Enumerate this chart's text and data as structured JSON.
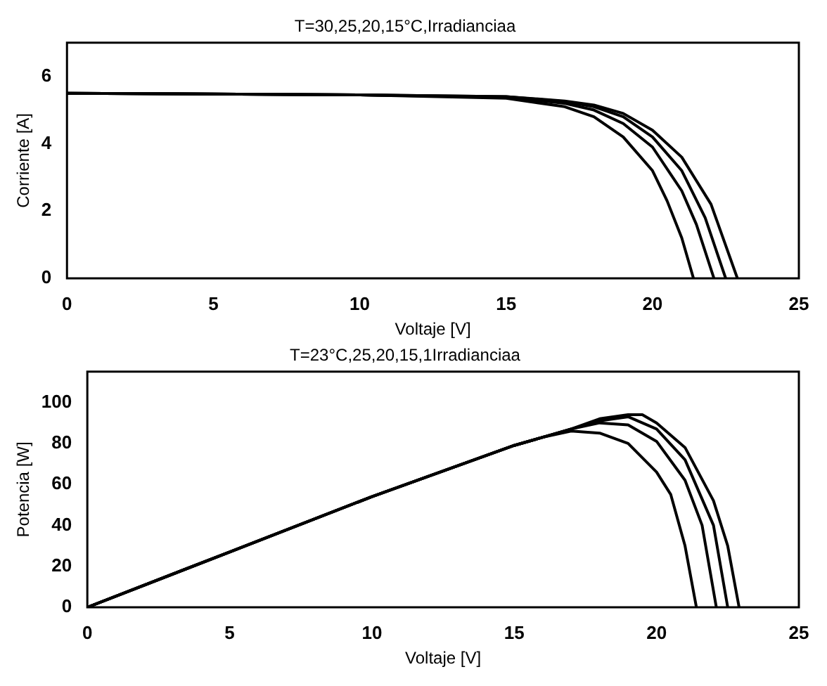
{
  "chart_data": [
    {
      "type": "line",
      "title": "T=30,25,20,15°C,Irradianciaa",
      "xlabel": "Voltaje [V]",
      "ylabel": "Corriente [A]",
      "xlim": [
        0,
        25
      ],
      "xticks": [
        0,
        5,
        10,
        15,
        20,
        25
      ],
      "ylim": [
        0,
        7
      ],
      "yticks": [
        0,
        2,
        4,
        6
      ],
      "grid": false,
      "legend": false,
      "series": [
        {
          "color": "#000000",
          "x": [
            0,
            10,
            15,
            17,
            18,
            19,
            20,
            20.5,
            21,
            21.4
          ],
          "values": [
            5.5,
            5.45,
            5.35,
            5.1,
            4.8,
            4.2,
            3.2,
            2.3,
            1.2,
            0
          ]
        },
        {
          "color": "#000000",
          "x": [
            0,
            10,
            15,
            17,
            18,
            19,
            20,
            21,
            21.5,
            22.1
          ],
          "values": [
            5.5,
            5.45,
            5.38,
            5.2,
            5.0,
            4.6,
            3.9,
            2.6,
            1.6,
            0
          ]
        },
        {
          "color": "#000000",
          "x": [
            0,
            10,
            15,
            17,
            18,
            19,
            20,
            21,
            21.8,
            22.5
          ],
          "values": [
            5.5,
            5.45,
            5.4,
            5.25,
            5.1,
            4.8,
            4.2,
            3.2,
            1.8,
            0
          ]
        },
        {
          "color": "#000000",
          "x": [
            0,
            10,
            15,
            17,
            18,
            19,
            20,
            21,
            22,
            22.9
          ],
          "values": [
            5.5,
            5.45,
            5.4,
            5.27,
            5.15,
            4.9,
            4.4,
            3.6,
            2.2,
            0
          ]
        }
      ]
    },
    {
      "type": "line",
      "title": "T=23°C,25,20,15,1Irradianciaa",
      "xlabel": "Voltaje [V]",
      "ylabel": "Potencia [W]",
      "xlim": [
        0,
        25
      ],
      "xticks": [
        0,
        5,
        10,
        15,
        20,
        25
      ],
      "ylim": [
        0,
        115
      ],
      "yticks": [
        0,
        20,
        40,
        60,
        80,
        100
      ],
      "grid": false,
      "legend": false,
      "series": [
        {
          "color": "#000000",
          "x": [
            0,
            5,
            10,
            15,
            16,
            17,
            18,
            19,
            20,
            20.5,
            21,
            21.4
          ],
          "values": [
            0,
            27,
            54,
            79,
            83,
            86,
            85,
            80,
            66,
            55,
            30,
            0
          ]
        },
        {
          "color": "#000000",
          "x": [
            0,
            5,
            10,
            15,
            16,
            17,
            18,
            19,
            20,
            21,
            21.6,
            22.1
          ],
          "values": [
            0,
            27,
            54,
            79,
            83,
            87,
            90,
            89,
            81,
            62,
            40,
            0
          ]
        },
        {
          "color": "#000000",
          "x": [
            0,
            5,
            10,
            15,
            16,
            17,
            18,
            19,
            20,
            21,
            22,
            22.5
          ],
          "values": [
            0,
            27,
            54,
            79,
            83,
            87,
            91,
            93,
            87,
            72,
            40,
            0
          ]
        },
        {
          "color": "#000000",
          "x": [
            0,
            5,
            10,
            15,
            16,
            17,
            18,
            19,
            19.5,
            20,
            21,
            22,
            22.5,
            22.9
          ],
          "values": [
            0,
            27,
            54,
            79,
            83,
            87,
            92,
            94,
            94,
            90,
            78,
            52,
            30,
            0
          ]
        }
      ]
    }
  ]
}
